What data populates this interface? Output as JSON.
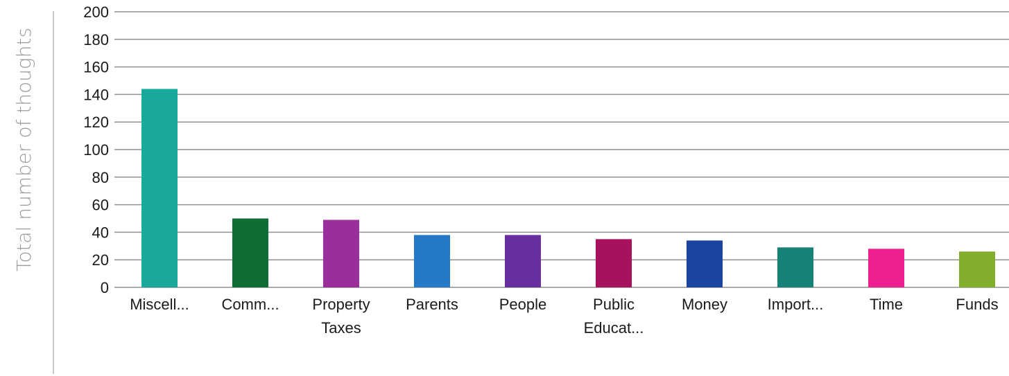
{
  "chart_data": {
    "type": "bar",
    "title": "",
    "xlabel": "",
    "ylabel": "Total number of thoughts",
    "ylim": [
      0,
      200
    ],
    "yticks": [
      0,
      20,
      40,
      60,
      80,
      100,
      120,
      140,
      160,
      180,
      200
    ],
    "grid": true,
    "legend": "none",
    "categories": [
      [
        "Miscell..."
      ],
      [
        "Comm..."
      ],
      [
        "Property",
        "Taxes"
      ],
      [
        "Parents"
      ],
      [
        "People"
      ],
      [
        "Public",
        "Educat..."
      ],
      [
        "Money"
      ],
      [
        "Import..."
      ],
      [
        "Time"
      ],
      [
        "Funds"
      ]
    ],
    "values": [
      144,
      50,
      49,
      38,
      38,
      35,
      34,
      29,
      28,
      26
    ],
    "colors": [
      "#1aaa9b",
      "#0e6e33",
      "#9a2f9c",
      "#2479c9",
      "#6a2f9f",
      "#a8115e",
      "#1a44a0",
      "#168277",
      "#ee1f8e",
      "#83ae2c"
    ]
  }
}
